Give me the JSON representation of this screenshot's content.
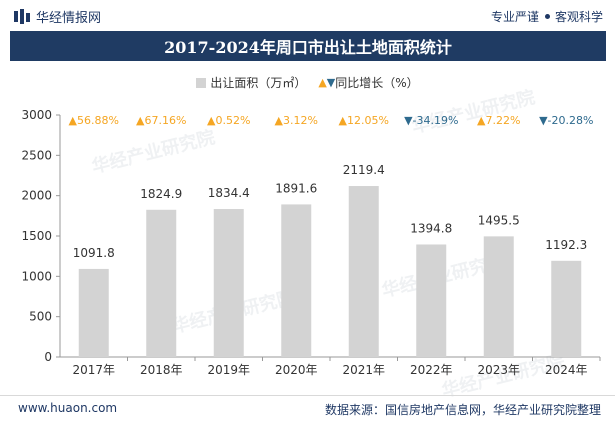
{
  "header": {
    "brand_name": "华经情报网",
    "tag_left": "专业严谨",
    "tag_right": "客观科学"
  },
  "footer": {
    "website": "www.huaon.com",
    "source": "数据来源：国信房地产信息网，华经产业研究院整理"
  },
  "watermark": "华经产业研究院",
  "chart_data": {
    "type": "bar",
    "title": "2017-2024年周口市出让土地面积统计",
    "categories": [
      "2017年",
      "2018年",
      "2019年",
      "2020年",
      "2021年",
      "2022年",
      "2023年",
      "2024年"
    ],
    "series": [
      {
        "name": "出让面积（万㎡）",
        "values": [
          1091.8,
          1824.9,
          1834.4,
          1891.6,
          2119.4,
          1394.8,
          1495.5,
          1192.3
        ],
        "color": "#d3d3d3"
      }
    ],
    "growth": {
      "name": "同比增长（%）",
      "labels": [
        "56.88%",
        "67.16%",
        "0.52%",
        "3.12%",
        "12.05%",
        "-34.19%",
        "7.22%",
        "-20.28%"
      ],
      "direction": [
        "up",
        "up",
        "up",
        "up",
        "up",
        "down",
        "up",
        "down"
      ],
      "up_color": "#f5a623",
      "down_color": "#2e6a8e"
    },
    "ylim": [
      0,
      3000
    ],
    "yticks": [
      0,
      500,
      1000,
      1500,
      2000,
      2500,
      3000
    ],
    "xlabel": "",
    "ylabel": "",
    "grid": false,
    "legend_position": "top-center"
  }
}
